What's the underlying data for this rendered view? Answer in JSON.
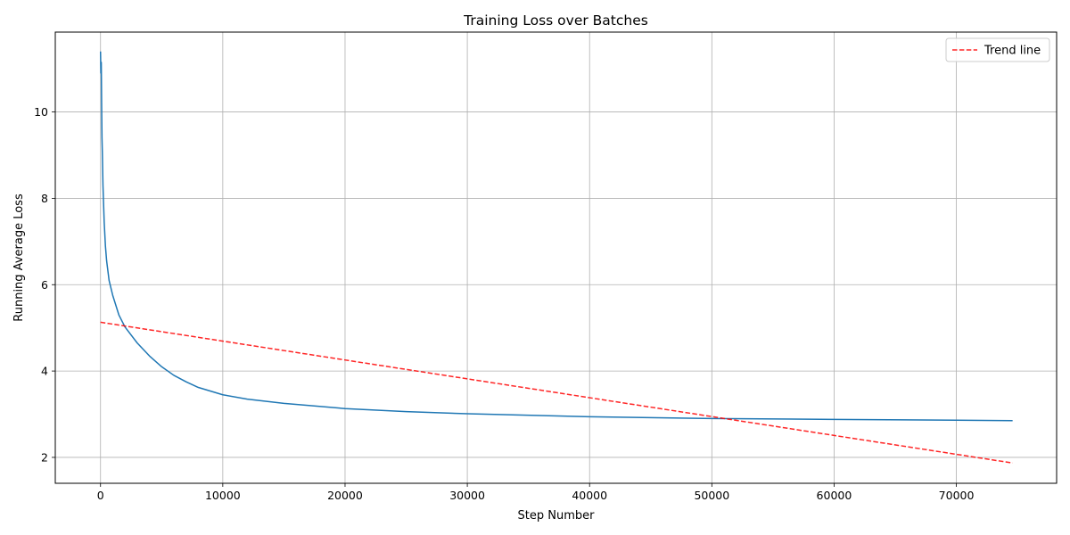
{
  "chart_data": {
    "type": "line",
    "title": "Training Loss over Batches",
    "xlabel": "Step Number",
    "ylabel": "Running Average Loss",
    "xlim": [
      -3700,
      78200
    ],
    "ylim": [
      1.4,
      11.85
    ],
    "xticks": [
      0,
      10000,
      20000,
      30000,
      40000,
      50000,
      60000,
      70000
    ],
    "yticks": [
      2,
      4,
      6,
      8,
      10
    ],
    "grid": true,
    "legend_position": "top-right",
    "series": [
      {
        "name": "",
        "color": "#1f77b4",
        "style": "solid",
        "x": [
          0,
          30,
          60,
          90,
          120,
          150,
          200,
          300,
          400,
          500,
          700,
          1000,
          1500,
          2000,
          3000,
          4000,
          5000,
          6000,
          7000,
          8000,
          10000,
          12000,
          15000,
          20000,
          25000,
          30000,
          40000,
          50000,
          60000,
          70000,
          74600
        ],
        "y": [
          11.4,
          10.9,
          11.15,
          10.2,
          9.4,
          9.05,
          8.3,
          7.45,
          6.9,
          6.55,
          6.1,
          5.75,
          5.3,
          5.02,
          4.65,
          4.35,
          4.1,
          3.9,
          3.75,
          3.62,
          3.45,
          3.35,
          3.25,
          3.13,
          3.06,
          3.01,
          2.94,
          2.9,
          2.88,
          2.86,
          2.85
        ]
      },
      {
        "name": "Trend line",
        "color": "#ff0000",
        "style": "dashed",
        "x": [
          0,
          74600
        ],
        "y": [
          5.13,
          1.87
        ]
      }
    ]
  }
}
